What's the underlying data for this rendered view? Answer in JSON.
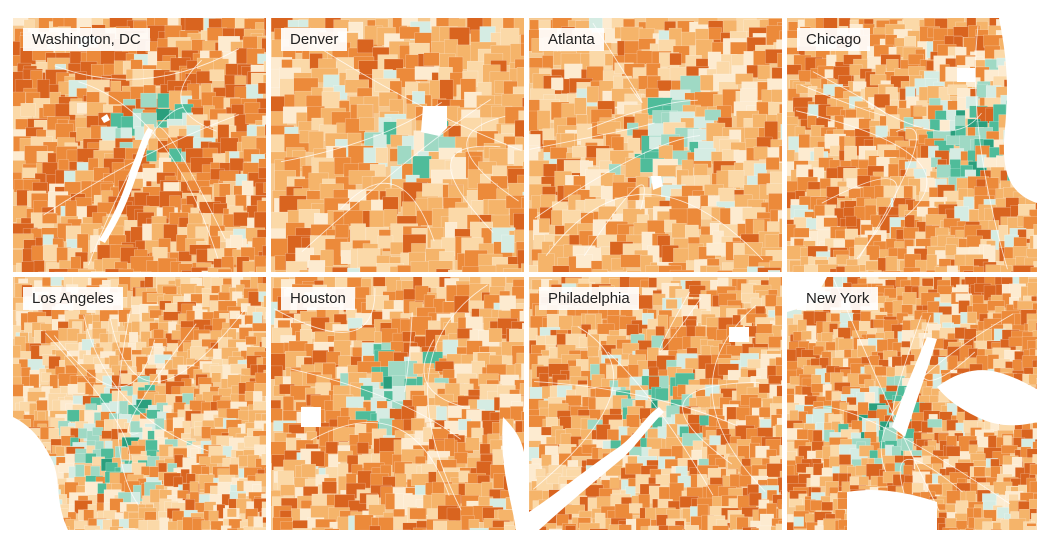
{
  "maps": [
    {
      "id": "washington-dc",
      "label": "Washington, DC",
      "dominant": "orange"
    },
    {
      "id": "denver",
      "label": "Denver",
      "dominant": "orange"
    },
    {
      "id": "atlanta",
      "label": "Atlanta",
      "dominant": "orange"
    },
    {
      "id": "chicago",
      "label": "Chicago",
      "dominant": "orange"
    },
    {
      "id": "los-angeles",
      "label": "Los Angeles",
      "dominant": "mixed"
    },
    {
      "id": "houston",
      "label": "Houston",
      "dominant": "orange"
    },
    {
      "id": "philadelphia",
      "label": "Philadelphia",
      "dominant": "mixed"
    },
    {
      "id": "new-york",
      "label": "New York",
      "dominant": "mixed"
    }
  ],
  "colors": {
    "dark_orange": "#d9641f",
    "orange": "#ec8a3a",
    "light_orange": "#f5b46a",
    "pale_orange": "#fbd9a8",
    "cream": "#fdebd0",
    "pale_green": "#d5ece3",
    "light_green": "#9fd9c4",
    "green": "#4fbc9a",
    "dark_green": "#2a9f7d",
    "water": "#ffffff",
    "road": "#ffffff"
  },
  "background_color": "#ffffff",
  "label_background": "#ffffff",
  "label_text_color": "#222222"
}
